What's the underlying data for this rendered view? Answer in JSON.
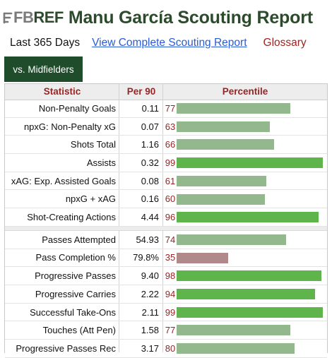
{
  "header": {
    "logo_fb": "FB",
    "logo_ref": "REF",
    "title": "Manu García Scouting Report"
  },
  "links": {
    "period": "Last 365 Days",
    "view_complete": "View Complete Scouting Report",
    "glossary": "Glossary"
  },
  "tab": {
    "label": "vs. Midfielders"
  },
  "table": {
    "columns": [
      "Statistic",
      "Per 90",
      "Percentile"
    ],
    "colors": {
      "bright_green": "#5fb44c",
      "muted_green": "#93b88d",
      "low_red": "#b08a8a",
      "header_text": "#9a2424"
    },
    "groups": [
      [
        {
          "stat": "Non-Penalty Goals",
          "per90": "0.11",
          "percentile": 77
        },
        {
          "stat": "npxG: Non-Penalty xG",
          "per90": "0.07",
          "percentile": 63
        },
        {
          "stat": "Shots Total",
          "per90": "1.16",
          "percentile": 66
        },
        {
          "stat": "Assists",
          "per90": "0.32",
          "percentile": 99
        },
        {
          "stat": "xAG: Exp. Assisted Goals",
          "per90": "0.08",
          "percentile": 61
        },
        {
          "stat": "npxG + xAG",
          "per90": "0.16",
          "percentile": 60
        },
        {
          "stat": "Shot-Creating Actions",
          "per90": "4.44",
          "percentile": 96
        }
      ],
      [
        {
          "stat": "Passes Attempted",
          "per90": "54.93",
          "percentile": 74
        },
        {
          "stat": "Pass Completion %",
          "per90": "79.8%",
          "percentile": 35
        },
        {
          "stat": "Progressive Passes",
          "per90": "9.40",
          "percentile": 98
        },
        {
          "stat": "Progressive Carries",
          "per90": "2.22",
          "percentile": 94
        },
        {
          "stat": "Successful Take-Ons",
          "per90": "2.11",
          "percentile": 99
        },
        {
          "stat": "Touches (Att Pen)",
          "per90": "1.58",
          "percentile": 77
        },
        {
          "stat": "Progressive Passes Rec",
          "per90": "3.17",
          "percentile": 80
        }
      ]
    ]
  }
}
